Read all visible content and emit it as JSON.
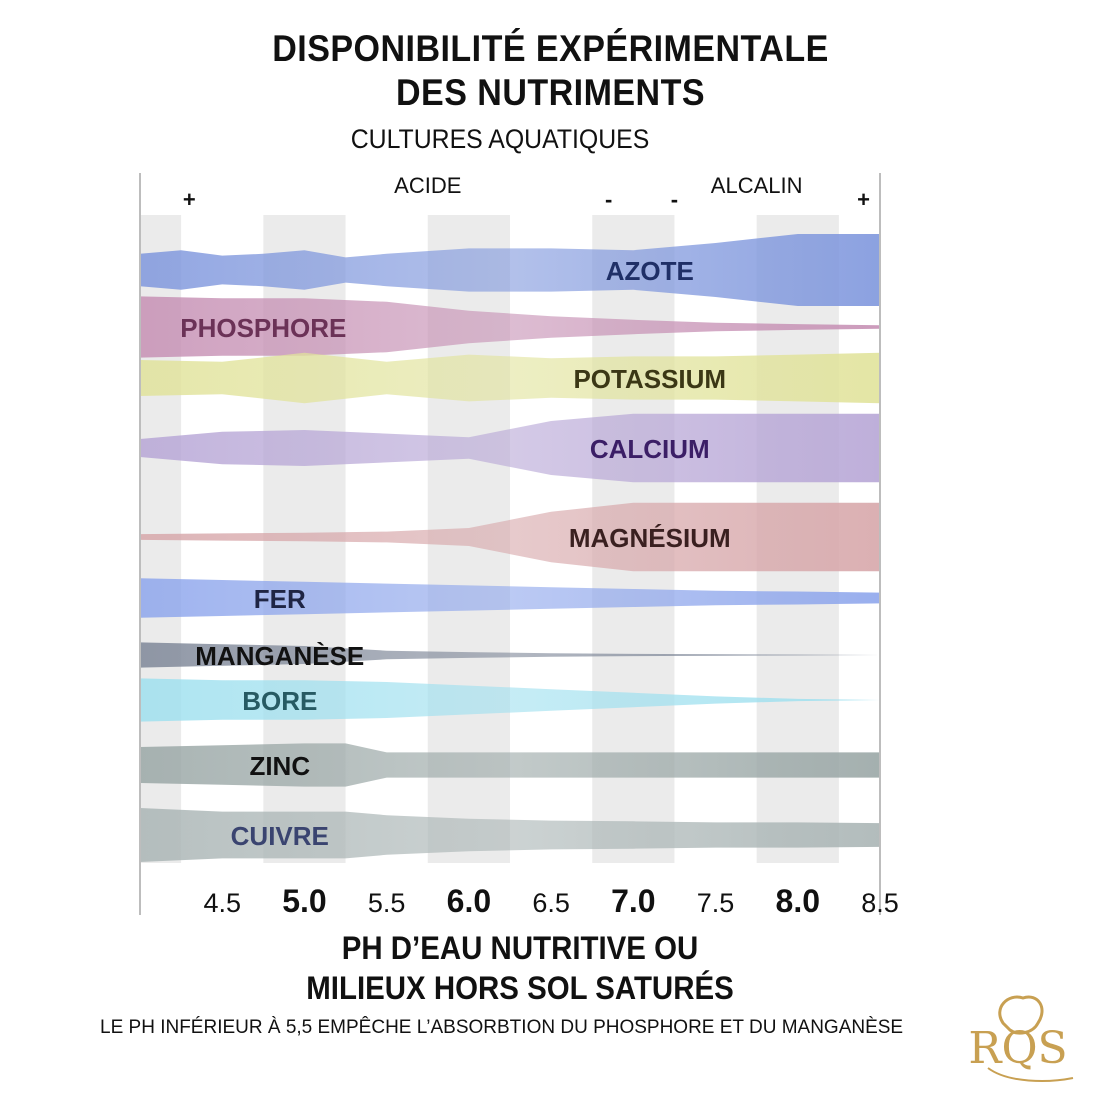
{
  "title_line1": "DISPONIBILITÉ EXPÉRIMENTALE",
  "title_line2": "DES NUTRIMENTS",
  "subtitle": "CULTURES AQUATIQUES",
  "xlabel_line1": "PH D’EAU NUTRITIVE OU",
  "xlabel_line2": "MILIEUX HORS SOL SATURÉS",
  "note": "LE PH INFÉRIEUR À 5,5 EMPÊCHE L’ABSORBTION DU PHOSPHORE ET DU MANGANÈSE",
  "logo_text": "RQS",
  "logo_color": "#c8a052",
  "chart_data": {
    "type": "area",
    "x_ticks": [
      "4.5",
      "5.0",
      "5.5",
      "6.0",
      "6.5",
      "7.0",
      "7.5",
      "8.0",
      "8.5"
    ],
    "bold_ticks": [
      "5.0",
      "6.0",
      "7.0",
      "8.0"
    ],
    "xlim": [
      4.0,
      8.5
    ],
    "scale_labels": [
      {
        "text": "ACIDE",
        "x": 5.75
      },
      {
        "text": "ALCALIN",
        "x": 7.75
      },
      {
        "text": "+",
        "x": 4.3
      },
      {
        "text": "-",
        "x": 6.85
      },
      {
        "text": "-",
        "x": 7.25
      },
      {
        "text": "+",
        "x": 8.4
      }
    ],
    "series": [
      {
        "name": "AZOTE",
        "color": "#7f97dd",
        "text_color": "#1f2f66",
        "label_x": 7.1,
        "x": [
          4.0,
          4.25,
          4.5,
          4.75,
          5.0,
          5.25,
          5.5,
          6.0,
          6.5,
          7.0,
          7.5,
          8.0,
          8.5
        ],
        "width": [
          0.45,
          0.55,
          0.4,
          0.45,
          0.55,
          0.35,
          0.45,
          0.6,
          0.6,
          0.55,
          0.75,
          1.0,
          1.0
        ]
      },
      {
        "name": "PHOSPHORE",
        "color": "#c690b4",
        "text_color": "#6b3257",
        "label_x": 4.75,
        "x": [
          4.0,
          4.5,
          5.0,
          5.5,
          6.0,
          6.5,
          7.0,
          7.5,
          8.0,
          8.5
        ],
        "width": [
          0.85,
          0.8,
          0.8,
          0.7,
          0.45,
          0.3,
          0.2,
          0.12,
          0.08,
          0.05
        ]
      },
      {
        "name": "POTASSIUM",
        "color": "#e1e39b",
        "text_color": "#3b3715",
        "label_x": 7.1,
        "x": [
          4.0,
          4.5,
          5.0,
          5.5,
          6.0,
          6.5,
          7.0,
          7.5,
          8.0,
          8.5
        ],
        "width": [
          0.5,
          0.45,
          0.7,
          0.45,
          0.65,
          0.55,
          0.6,
          0.6,
          0.65,
          0.7
        ]
      },
      {
        "name": "CALCIUM",
        "color": "#b7a6d6",
        "text_color": "#3b1e66",
        "label_x": 7.1,
        "x": [
          4.0,
          4.5,
          5.0,
          5.5,
          6.0,
          6.5,
          7.0,
          7.5,
          8.0,
          8.5
        ],
        "width": [
          0.25,
          0.45,
          0.5,
          0.4,
          0.3,
          0.75,
          0.95,
          0.95,
          0.95,
          0.95
        ]
      },
      {
        "name": "MAGNÉSIUM",
        "color": "#d7a7aa",
        "text_color": "#3a2020",
        "label_x": 7.1,
        "x": [
          4.0,
          4.5,
          5.0,
          5.5,
          6.0,
          6.5,
          7.0,
          7.5,
          8.0,
          8.5
        ],
        "width": [
          0.08,
          0.1,
          0.12,
          0.15,
          0.25,
          0.7,
          0.95,
          0.95,
          0.95,
          0.95
        ]
      },
      {
        "name": "FER",
        "color": "#8ea6ec",
        "text_color": "#1f2544",
        "label_x": 4.85,
        "x": [
          4.0,
          4.5,
          5.0,
          5.5,
          6.0,
          6.5,
          7.0,
          7.5,
          8.0,
          8.5
        ],
        "width": [
          0.55,
          0.5,
          0.45,
          0.4,
          0.35,
          0.3,
          0.25,
          0.2,
          0.18,
          0.15
        ]
      },
      {
        "name": "MANGANÈSE",
        "color": "#7e8798",
        "text_color": "#111111",
        "label_x": 4.85,
        "x": [
          4.0,
          4.5,
          5.0,
          5.5,
          6.0,
          6.5,
          7.0,
          7.5,
          8.0,
          8.5
        ],
        "width": [
          0.35,
          0.3,
          0.25,
          0.12,
          0.08,
          0.05,
          0.03,
          0.02,
          0.01,
          0.0
        ]
      },
      {
        "name": "BORE",
        "color": "#9fe0ef",
        "text_color": "#275a63",
        "label_x": 4.85,
        "x": [
          4.0,
          4.5,
          5.0,
          5.5,
          6.0,
          6.5,
          7.0,
          7.5,
          8.0,
          8.5
        ],
        "width": [
          0.6,
          0.55,
          0.55,
          0.5,
          0.4,
          0.3,
          0.2,
          0.1,
          0.03,
          0.0
        ]
      },
      {
        "name": "ZINC",
        "color": "#9aa7a6",
        "text_color": "#111111",
        "label_x": 4.85,
        "x": [
          4.0,
          4.5,
          5.0,
          5.25,
          5.5,
          6.0,
          6.5,
          7.0,
          7.5,
          8.0,
          8.5
        ],
        "width": [
          0.5,
          0.55,
          0.6,
          0.6,
          0.35,
          0.35,
          0.35,
          0.35,
          0.35,
          0.35,
          0.35
        ]
      },
      {
        "name": "CUIVRE",
        "color": "#aab5b5",
        "text_color": "#3a4470",
        "label_x": 4.85,
        "x": [
          4.0,
          4.5,
          5.0,
          5.25,
          5.5,
          6.0,
          6.5,
          7.0,
          7.5,
          8.0,
          8.5
        ],
        "width": [
          0.75,
          0.65,
          0.65,
          0.65,
          0.55,
          0.45,
          0.4,
          0.38,
          0.35,
          0.35,
          0.33
        ]
      }
    ]
  }
}
